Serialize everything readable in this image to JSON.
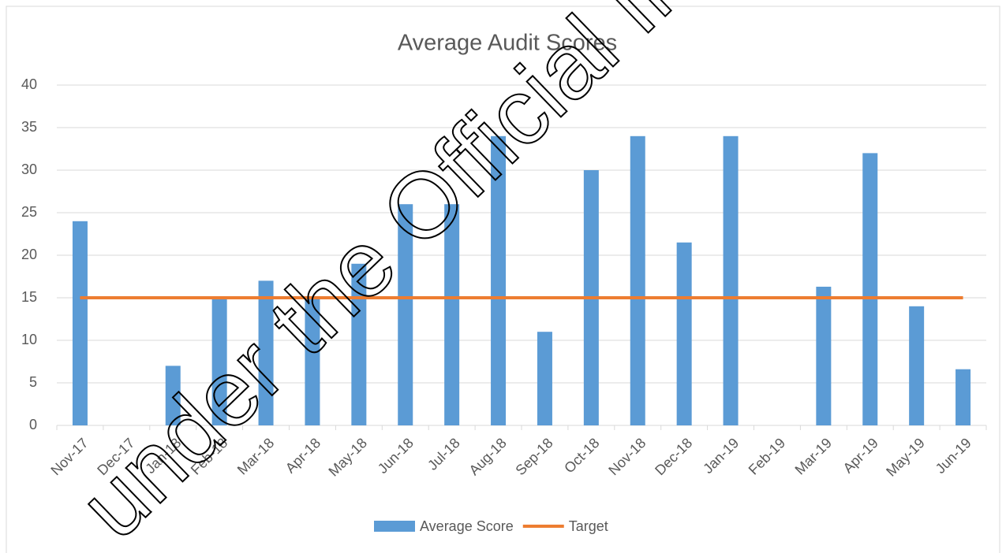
{
  "chart_data": {
    "type": "bar",
    "title": "Average Audit Scores",
    "categories": [
      "Nov-17",
      "Dec-17",
      "Jan-18",
      "Feb-18",
      "Mar-18",
      "Apr-18",
      "May-18",
      "Jun-18",
      "Jul-18",
      "Aug-18",
      "Sep-18",
      "Oct-18",
      "Nov-18",
      "Dec-18",
      "Jan-19",
      "Feb-19",
      "Mar-19",
      "Apr-19",
      "May-19",
      "Jun-19"
    ],
    "series": [
      {
        "name": "Average Score",
        "type": "bar",
        "color": "#5b9bd5",
        "values": [
          24,
          null,
          7,
          15,
          17,
          15,
          19,
          26,
          26,
          34,
          11,
          30,
          34,
          21.5,
          34,
          null,
          16.3,
          32,
          14,
          6.6
        ]
      },
      {
        "name": "Target",
        "type": "line",
        "color": "#ed7d31",
        "values": [
          15,
          15,
          15,
          15,
          15,
          15,
          15,
          15,
          15,
          15,
          15,
          15,
          15,
          15,
          15,
          15,
          15,
          15,
          15,
          15
        ]
      }
    ],
    "ylim": [
      0,
      40
    ],
    "yticks": [
      0,
      5,
      10,
      15,
      20,
      25,
      30,
      35,
      40
    ],
    "grid": true,
    "legend": "bottom",
    "watermark": "under the Official Inform"
  }
}
